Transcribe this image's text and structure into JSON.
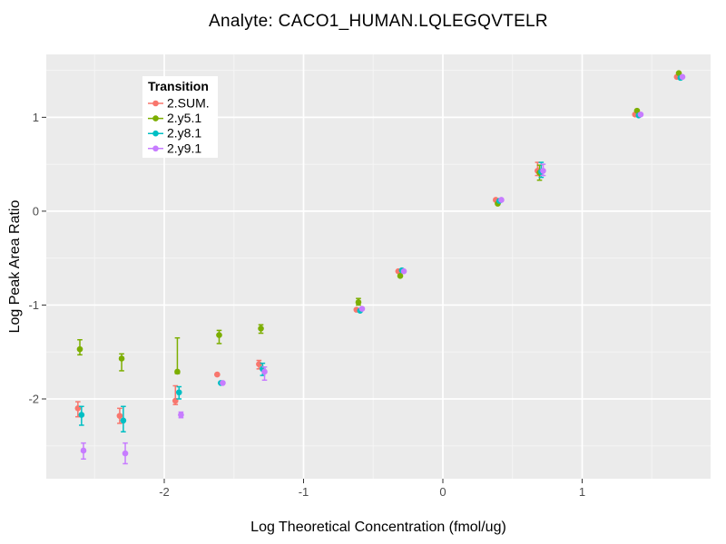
{
  "header": {
    "title": "Analyte: CACO1_HUMAN.LQLEGQVTELR"
  },
  "chart_data": {
    "type": "scatter",
    "title": "Analyte: CACO1_HUMAN.LQLEGQVTELR",
    "xlabel": "Log Theoretical Concentration (fmol/ug)",
    "ylabel": "Log Peak Area Ratio",
    "xlim": [
      -2.847,
      1.922
    ],
    "ylim": [
      -2.85,
      1.67
    ],
    "x_major_ticks": [
      -2,
      -1,
      0,
      1
    ],
    "y_major_ticks": [
      -2,
      -1,
      0,
      1
    ],
    "x_minor_ticks": [
      -2.5,
      -1.5,
      -0.5,
      0.5,
      1.5
    ],
    "y_minor_ticks": [
      -2.5,
      -1.5,
      -0.5,
      0.5,
      1.5
    ],
    "grid": true,
    "legend": {
      "title": "Transition",
      "position": "top-left-inside"
    },
    "style": {
      "panel_bg": "#EBEBEB",
      "grid_major": "#FFFFFF",
      "grid_minor": "#F5F5F5",
      "tick_mark": "#333333",
      "tick_label": "#4D4D4D",
      "legend_bg": "#FFFFFF",
      "text": "#000000"
    },
    "series": [
      {
        "name": "2.SUM.",
        "color": "#F8766D",
        "x_offset": -0.02,
        "points": [
          {
            "x": -2.6,
            "y": -2.1,
            "lo": -2.19,
            "hi": -2.03
          },
          {
            "x": -2.3,
            "y": -2.18,
            "lo": -2.26,
            "hi": -2.1
          },
          {
            "x": -1.9,
            "y": -2.02,
            "lo": -2.06,
            "hi": -1.86
          },
          {
            "x": -1.6,
            "y": -1.74
          },
          {
            "x": -1.3,
            "y": -1.63,
            "lo": -1.68,
            "hi": -1.59
          },
          {
            "x": -0.6,
            "y": -1.05
          },
          {
            "x": -0.3,
            "y": -0.64
          },
          {
            "x": 0.4,
            "y": 0.12
          },
          {
            "x": 0.7,
            "y": 0.43,
            "lo": 0.38,
            "hi": 0.52
          },
          {
            "x": 1.4,
            "y": 1.03
          },
          {
            "x": 1.7,
            "y": 1.43
          }
        ]
      },
      {
        "name": "2.y5.1",
        "color": "#7CAE00",
        "x_offset": -0.006,
        "points": [
          {
            "x": -2.6,
            "y": -1.47,
            "lo": -1.53,
            "hi": -1.37
          },
          {
            "x": -2.3,
            "y": -1.57,
            "lo": -1.7,
            "hi": -1.52
          },
          {
            "x": -1.9,
            "y": -1.71,
            "lo": -1.73,
            "hi": -1.35
          },
          {
            "x": -1.6,
            "y": -1.32,
            "lo": -1.41,
            "hi": -1.27
          },
          {
            "x": -1.3,
            "y": -1.25,
            "lo": -1.3,
            "hi": -1.21
          },
          {
            "x": -0.6,
            "y": -0.97,
            "lo": -1.0,
            "hi": -0.93
          },
          {
            "x": -0.3,
            "y": -0.69
          },
          {
            "x": 0.4,
            "y": 0.08
          },
          {
            "x": 0.7,
            "y": 0.41,
            "lo": 0.33,
            "hi": 0.49
          },
          {
            "x": 1.4,
            "y": 1.07
          },
          {
            "x": 1.7,
            "y": 1.47
          }
        ]
      },
      {
        "name": "2.y8.1",
        "color": "#00BFC4",
        "x_offset": 0.006,
        "points": [
          {
            "x": -2.6,
            "y": -2.17,
            "lo": -2.28,
            "hi": -2.08
          },
          {
            "x": -2.3,
            "y": -2.23,
            "lo": -2.35,
            "hi": -2.08
          },
          {
            "x": -1.9,
            "y": -1.93,
            "lo": -2.0,
            "hi": -1.87
          },
          {
            "x": -1.6,
            "y": -1.83
          },
          {
            "x": -1.3,
            "y": -1.68,
            "lo": -1.75,
            "hi": -1.62
          },
          {
            "x": -0.6,
            "y": -1.06
          },
          {
            "x": -0.3,
            "y": -0.63
          },
          {
            "x": 0.4,
            "y": 0.11
          },
          {
            "x": 0.7,
            "y": 0.42,
            "lo": 0.36,
            "hi": 0.52
          },
          {
            "x": 1.4,
            "y": 1.02
          },
          {
            "x": 1.7,
            "y": 1.42
          }
        ]
      },
      {
        "name": "2.y9.1",
        "color": "#C77CFF",
        "x_offset": 0.02,
        "points": [
          {
            "x": -2.6,
            "y": -2.55,
            "lo": -2.64,
            "hi": -2.47
          },
          {
            "x": -2.3,
            "y": -2.58,
            "lo": -2.69,
            "hi": -2.47
          },
          {
            "x": -1.9,
            "y": -2.17,
            "lo": -2.2,
            "hi": -2.14
          },
          {
            "x": -1.6,
            "y": -1.83
          },
          {
            "x": -1.3,
            "y": -1.71,
            "lo": -1.8,
            "hi": -1.66
          },
          {
            "x": -0.6,
            "y": -1.04
          },
          {
            "x": -0.3,
            "y": -0.64
          },
          {
            "x": 0.4,
            "y": 0.12
          },
          {
            "x": 0.7,
            "y": 0.43,
            "lo": 0.38,
            "hi": 0.5
          },
          {
            "x": 1.4,
            "y": 1.03
          },
          {
            "x": 1.7,
            "y": 1.43
          }
        ]
      }
    ]
  }
}
